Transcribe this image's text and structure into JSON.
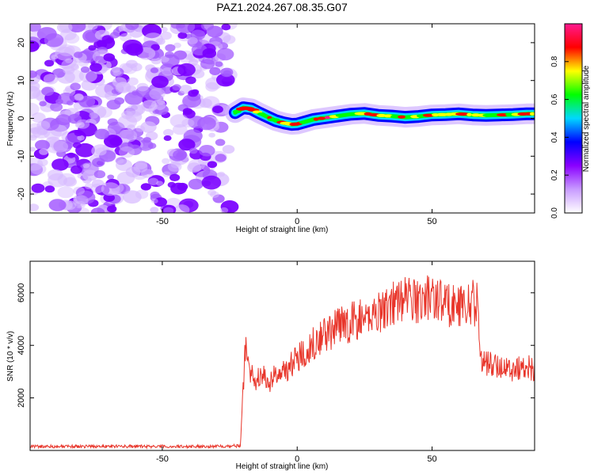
{
  "figure": {
    "title": "PAZ1.2024.267.08.35.G07"
  },
  "chart_data": [
    {
      "type": "heatmap",
      "xlabel": "Height of straight line (km)",
      "ylabel": "Frequency (Hz)",
      "xlim": [
        -99,
        88
      ],
      "ylim": [
        -25,
        25
      ],
      "xticks": [
        -50,
        0,
        50
      ],
      "yticks": [
        -20,
        -10,
        0,
        10,
        20
      ],
      "colorbar": {
        "label": "Normalized spectral amplitude",
        "range": [
          0,
          1
        ],
        "ticks": [
          0.0,
          0.2,
          0.4,
          0.6,
          0.8
        ],
        "colors": [
          "#ffffff",
          "#c89bff",
          "#8a00ff",
          "#0000ff",
          "#00d8ff",
          "#00ff00",
          "#ffff00",
          "#ff0000",
          "#ff1a90"
        ]
      },
      "noise_region_x": [
        -99,
        -25
      ],
      "signal_track": {
        "x": [
          -23,
          -20,
          -17,
          -14,
          -11,
          -8,
          -5,
          -2,
          0,
          3,
          6,
          10,
          15,
          20,
          25,
          30,
          35,
          40,
          45,
          50,
          55,
          60,
          65,
          70,
          75,
          80,
          85,
          88
        ],
        "y": [
          1.5,
          2.8,
          2.5,
          1.4,
          0.4,
          -0.6,
          -1.2,
          -1.6,
          -1.5,
          -0.9,
          -0.3,
          0.1,
          0.6,
          1.1,
          1.3,
          0.8,
          0.6,
          0.3,
          0.5,
          0.9,
          1.0,
          1.2,
          0.9,
          0.8,
          0.9,
          1.0,
          1.2,
          1.2
        ],
        "peak_amplitude": 0.95
      }
    },
    {
      "type": "line",
      "xlabel": "Height of straight line (km)",
      "ylabel": "SNR (10 * v/v)",
      "xlim": [
        -99,
        88
      ],
      "ylim": [
        0,
        7200
      ],
      "xticks": [
        -50,
        0,
        50
      ],
      "yticks": [
        2000,
        4000,
        6000
      ],
      "color": "#e8352a",
      "series": [
        {
          "x": [
            -99,
            -85,
            -70,
            -55,
            -40,
            -30,
            -25,
            -21,
            -20,
            -19,
            -18,
            -17,
            -15,
            -12,
            -10,
            -8,
            -5,
            -2,
            0,
            3,
            5,
            8,
            10,
            12,
            15,
            18,
            20,
            25,
            30,
            35,
            40,
            45,
            50,
            55,
            60,
            64,
            67,
            68,
            70,
            75,
            80,
            85,
            88
          ],
          "y": [
            150,
            150,
            160,
            150,
            150,
            160,
            170,
            180,
            2400,
            4400,
            3100,
            2900,
            2700,
            2800,
            2600,
            2900,
            3000,
            3300,
            3500,
            3800,
            4000,
            4300,
            4400,
            4500,
            4700,
            4800,
            4900,
            5000,
            5300,
            5600,
            5800,
            5700,
            5900,
            5600,
            5500,
            5600,
            5600,
            3500,
            3300,
            3200,
            3100,
            3200,
            3100
          ]
        }
      ]
    }
  ]
}
